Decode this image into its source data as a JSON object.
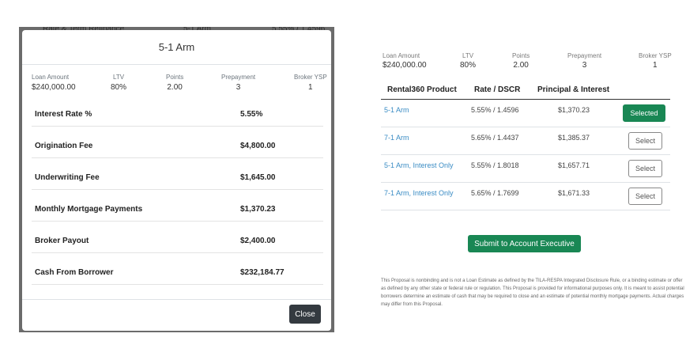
{
  "background_row": {
    "label": "Rate & Term Refinance",
    "product": "5-1 Arm",
    "rate": "5.55% / 1.4596"
  },
  "modal": {
    "title": "5-1 Arm",
    "summary": [
      {
        "label": "Loan Amount",
        "value": "$240,000.00"
      },
      {
        "label": "LTV",
        "value": "80%"
      },
      {
        "label": "Points",
        "value": "2.00"
      },
      {
        "label": "Prepayment",
        "value": "3"
      },
      {
        "label": "Broker YSP",
        "value": "1"
      }
    ],
    "details": [
      {
        "label": "Interest Rate %",
        "value": "5.55%"
      },
      {
        "label": "Origination Fee",
        "value": "$4,800.00"
      },
      {
        "label": "Underwriting Fee",
        "value": "$1,645.00"
      },
      {
        "label": "Monthly Mortgage Payments",
        "value": "$1,370.23"
      },
      {
        "label": "Broker Payout",
        "value": "$2,400.00"
      },
      {
        "label": "Cash From Borrower",
        "value": "$232,184.77"
      }
    ],
    "close_label": "Close"
  },
  "proposal": {
    "summary": [
      {
        "label": "Loan Amount",
        "value": "$240,000.00"
      },
      {
        "label": "LTV",
        "value": "80%"
      },
      {
        "label": "Points",
        "value": "2.00"
      },
      {
        "label": "Prepayment",
        "value": "3"
      },
      {
        "label": "Broker YSP",
        "value": "1"
      }
    ],
    "columns": [
      "Rental360 Product",
      "Rate / DSCR",
      "Principal & Interest"
    ],
    "rows": [
      {
        "product": "5-1 Arm",
        "rate": "5.55%  /  1.4596",
        "pi": "$1,370.23",
        "button": "Selected"
      },
      {
        "product": "7-1 Arm",
        "rate": "5.65%  /  1.4437",
        "pi": "$1,385.37",
        "button": "Select"
      },
      {
        "product": "5-1 Arm, Interest Only",
        "rate": "5.55%  /  1.8018",
        "pi": "$1,657.71",
        "button": "Select"
      },
      {
        "product": "7-1 Arm, Interest Only",
        "rate": "5.65%  /  1.7699",
        "pi": "$1,671.33",
        "button": "Select"
      }
    ],
    "submit_label": "Submit to Account Executive",
    "disclaimer": "This Proposal is nonbinding and is not a Loan Estimate as defined by the TILA-RESPA Integrated Disclosure Rule, or a binding estimate or offer as defined by any other state or federal rule or regulation. This Proposal is provided for informational purposes only. It is meant to assist potential borrowers determine an estimate of cash that may be required to close and an estimate of potential monthly mortgage payments. Actual charges may differ from this Proposal."
  },
  "colors": {
    "accent_green": "#198754",
    "link_blue": "#3a8cc4",
    "close_dark": "#343a40"
  }
}
